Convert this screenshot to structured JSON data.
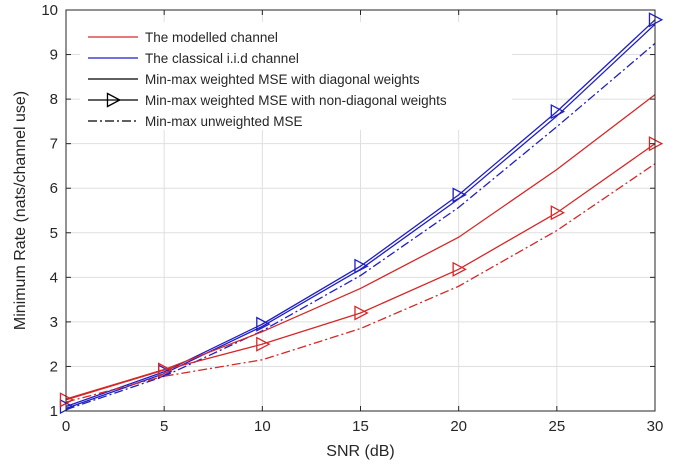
{
  "chart_data": {
    "type": "line",
    "xlabel": "SNR (dB)",
    "ylabel": "Minimum Rate (nats/channel use)",
    "xlim": [
      0,
      30
    ],
    "ylim": [
      1,
      10
    ],
    "xticks": [
      0,
      5,
      10,
      15,
      20,
      25,
      30
    ],
    "yticks": [
      1,
      2,
      3,
      4,
      5,
      6,
      7,
      8,
      9,
      10
    ],
    "grid": true,
    "legend_position": "top-left",
    "legend": [
      {
        "label": "The modelled channel",
        "color": "#d62728",
        "style": "solid",
        "marker": "none"
      },
      {
        "label": "The classical i.i.d channel",
        "color": "#1f1fc4",
        "style": "solid",
        "marker": "none"
      },
      {
        "label": "Min-max weighted MSE with diagonal weights",
        "color": "#000000",
        "style": "solid",
        "marker": "none"
      },
      {
        "label": "Min-max weighted MSE with non-diagonal weights",
        "color": "#000000",
        "style": "solid",
        "marker": "triangle-right"
      },
      {
        "label": "Min-max unweighted MSE",
        "color": "#000000",
        "style": "dashdot",
        "marker": "none"
      }
    ],
    "x": [
      0,
      5,
      10,
      15,
      20,
      25,
      30
    ],
    "series": [
      {
        "channel": "iid",
        "scheme": "non-diagonal",
        "color": "#1f1fc4",
        "style": "solid",
        "marker": "triangle-right",
        "values": [
          1.1,
          1.88,
          2.95,
          4.25,
          5.85,
          7.72,
          9.78
        ]
      },
      {
        "channel": "iid",
        "scheme": "diagonal",
        "color": "#1f1fc4",
        "style": "solid",
        "marker": "none",
        "values": [
          1.06,
          1.84,
          2.9,
          4.18,
          5.76,
          7.62,
          9.68
        ]
      },
      {
        "channel": "iid",
        "scheme": "unweighted",
        "color": "#1f1fc4",
        "style": "dashdot",
        "marker": "none",
        "values": [
          1.03,
          1.78,
          2.8,
          4.04,
          5.57,
          7.38,
          9.25
        ]
      },
      {
        "channel": "modelled",
        "scheme": "diagonal",
        "color": "#d62728",
        "style": "solid",
        "marker": "none",
        "values": [
          1.27,
          1.93,
          2.78,
          3.75,
          4.9,
          6.42,
          8.1
        ]
      },
      {
        "channel": "modelled",
        "scheme": "non-diagonal",
        "color": "#d62728",
        "style": "solid",
        "marker": "triangle-right",
        "values": [
          1.25,
          1.92,
          2.5,
          3.2,
          4.18,
          5.45,
          7.0
        ]
      },
      {
        "channel": "modelled",
        "scheme": "unweighted",
        "color": "#d62728",
        "style": "dashdot",
        "marker": "none",
        "values": [
          1.2,
          1.78,
          2.15,
          2.85,
          3.8,
          5.05,
          6.55
        ]
      }
    ]
  }
}
